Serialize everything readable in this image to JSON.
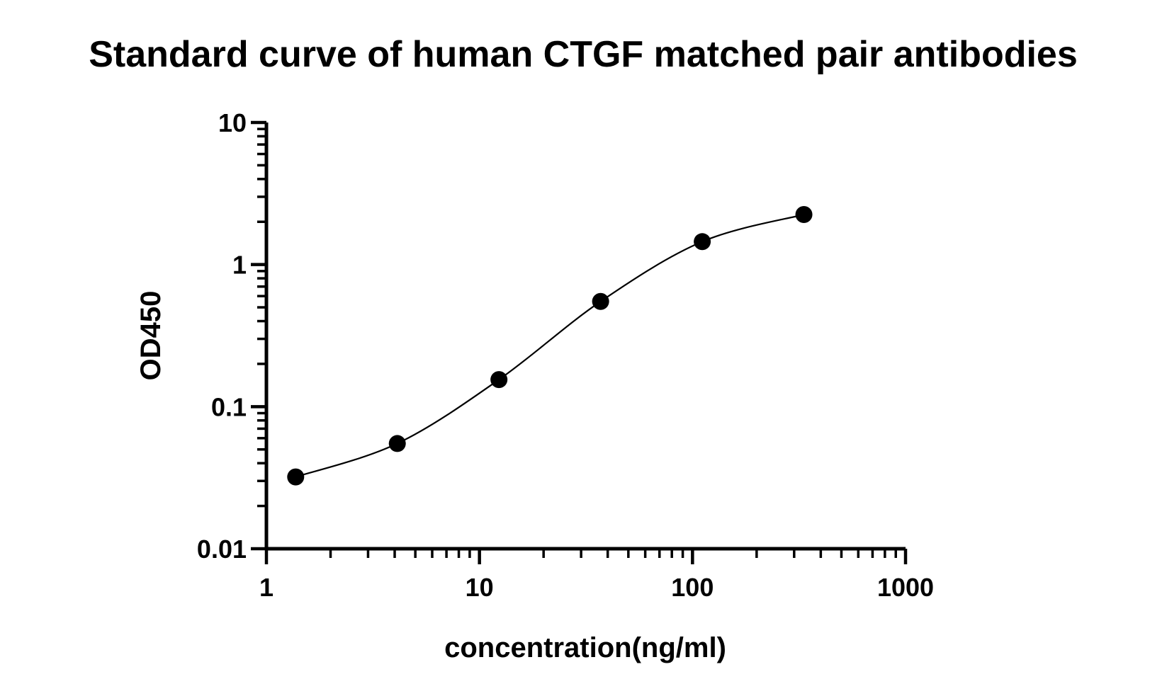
{
  "chart_data": {
    "type": "scatter",
    "title": "Standard curve of human CTGF matched pair antibodies",
    "xlabel": "concentration(ng/ml)",
    "ylabel": "OD450",
    "x_scale": "log",
    "y_scale": "log",
    "xlim": [
      1,
      1000
    ],
    "ylim": [
      0.01,
      10
    ],
    "x_ticks": [
      "1",
      "10",
      "100",
      "1000"
    ],
    "y_ticks": [
      "0.01",
      "0.1",
      "1",
      "10"
    ],
    "grid": false,
    "legend": "none",
    "series": [
      {
        "x": [
          1.372,
          4.115,
          12.346,
          37.037,
          111.111,
          333.333
        ],
        "y": [
          0.032,
          0.055,
          0.155,
          0.55,
          1.45,
          2.25
        ]
      }
    ],
    "fit_curve": "four-parameter logistic",
    "marker_color": "#000000",
    "line_color": "#000000"
  }
}
